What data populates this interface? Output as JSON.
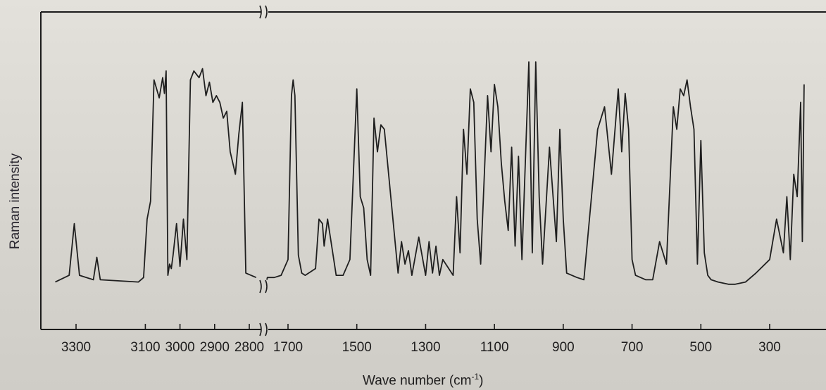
{
  "chart_data": {
    "type": "line",
    "xlabel": "Wave number (cm",
    "xlabel_sup": "-1",
    "xlabel_suffix": ")",
    "ylabel": "Raman intensity",
    "x_axis_broken": true,
    "x_ticks_left_segment": [
      3300,
      3100,
      3000,
      2900,
      2800
    ],
    "x_ticks_right_segment": [
      1700,
      1500,
      1300,
      1100,
      900,
      700,
      500,
      300
    ],
    "y_ticks": [],
    "grid": false,
    "series": [
      {
        "segment": "high-wavenumber",
        "x": [
          3360,
          3320,
          3305,
          3290,
          3250,
          3240,
          3230,
          3120,
          3105,
          3095,
          3085,
          3075,
          3060,
          3050,
          3045,
          3040,
          3035,
          3030,
          3025,
          3020,
          3010,
          3000,
          2990,
          2980,
          2970,
          2960,
          2945,
          2935,
          2925,
          2915,
          2905,
          2895,
          2885,
          2875,
          2865,
          2855,
          2840,
          2830,
          2820,
          2810,
          2780
        ],
        "y": [
          0.02,
          0.05,
          0.28,
          0.05,
          0.03,
          0.13,
          0.03,
          0.02,
          0.04,
          0.3,
          0.38,
          0.92,
          0.84,
          0.93,
          0.86,
          0.96,
          0.05,
          0.1,
          0.08,
          0.14,
          0.28,
          0.09,
          0.3,
          0.12,
          0.92,
          0.96,
          0.93,
          0.97,
          0.85,
          0.91,
          0.82,
          0.85,
          0.82,
          0.75,
          0.78,
          0.6,
          0.5,
          0.68,
          0.82,
          0.06,
          0.04
        ]
      },
      {
        "segment": "low-wavenumber",
        "x": [
          1780,
          1760,
          1740,
          1720,
          1700,
          1690,
          1685,
          1680,
          1670,
          1660,
          1650,
          1620,
          1610,
          1600,
          1595,
          1585,
          1560,
          1540,
          1520,
          1500,
          1490,
          1480,
          1470,
          1460,
          1450,
          1440,
          1430,
          1420,
          1380,
          1370,
          1360,
          1350,
          1340,
          1320,
          1300,
          1290,
          1280,
          1270,
          1260,
          1250,
          1220,
          1210,
          1200,
          1190,
          1180,
          1170,
          1160,
          1150,
          1140,
          1120,
          1110,
          1100,
          1090,
          1080,
          1070,
          1060,
          1050,
          1040,
          1030,
          1020,
          1000,
          990,
          980,
          970,
          960,
          940,
          920,
          910,
          900,
          890,
          860,
          840,
          800,
          780,
          760,
          740,
          730,
          720,
          710,
          700,
          690,
          660,
          640,
          620,
          600,
          580,
          570,
          560,
          550,
          540,
          530,
          520,
          510,
          500,
          490,
          480,
          470,
          450,
          420,
          400,
          370,
          340,
          300,
          280,
          260,
          250,
          240,
          230,
          220,
          210,
          205,
          200
        ],
        "y": [
          0.03,
          0.04,
          0.04,
          0.05,
          0.12,
          0.85,
          0.92,
          0.85,
          0.14,
          0.06,
          0.05,
          0.08,
          0.3,
          0.28,
          0.18,
          0.3,
          0.05,
          0.05,
          0.12,
          0.88,
          0.4,
          0.35,
          0.12,
          0.05,
          0.75,
          0.6,
          0.72,
          0.7,
          0.06,
          0.2,
          0.1,
          0.16,
          0.05,
          0.22,
          0.05,
          0.2,
          0.06,
          0.18,
          0.05,
          0.12,
          0.05,
          0.4,
          0.15,
          0.7,
          0.5,
          0.88,
          0.82,
          0.3,
          0.1,
          0.85,
          0.6,
          0.9,
          0.8,
          0.55,
          0.38,
          0.25,
          0.62,
          0.18,
          0.58,
          0.12,
          1.0,
          0.15,
          1.0,
          0.4,
          0.1,
          0.62,
          0.2,
          0.7,
          0.3,
          0.06,
          0.04,
          0.03,
          0.7,
          0.8,
          0.5,
          0.88,
          0.6,
          0.86,
          0.7,
          0.12,
          0.05,
          0.03,
          0.03,
          0.2,
          0.1,
          0.8,
          0.7,
          0.88,
          0.85,
          0.92,
          0.8,
          0.7,
          0.1,
          0.65,
          0.15,
          0.05,
          0.03,
          0.02,
          0.01,
          0.01,
          0.02,
          0.06,
          0.12,
          0.3,
          0.15,
          0.4,
          0.12,
          0.5,
          0.4,
          0.82,
          0.2,
          0.9
        ]
      }
    ]
  }
}
